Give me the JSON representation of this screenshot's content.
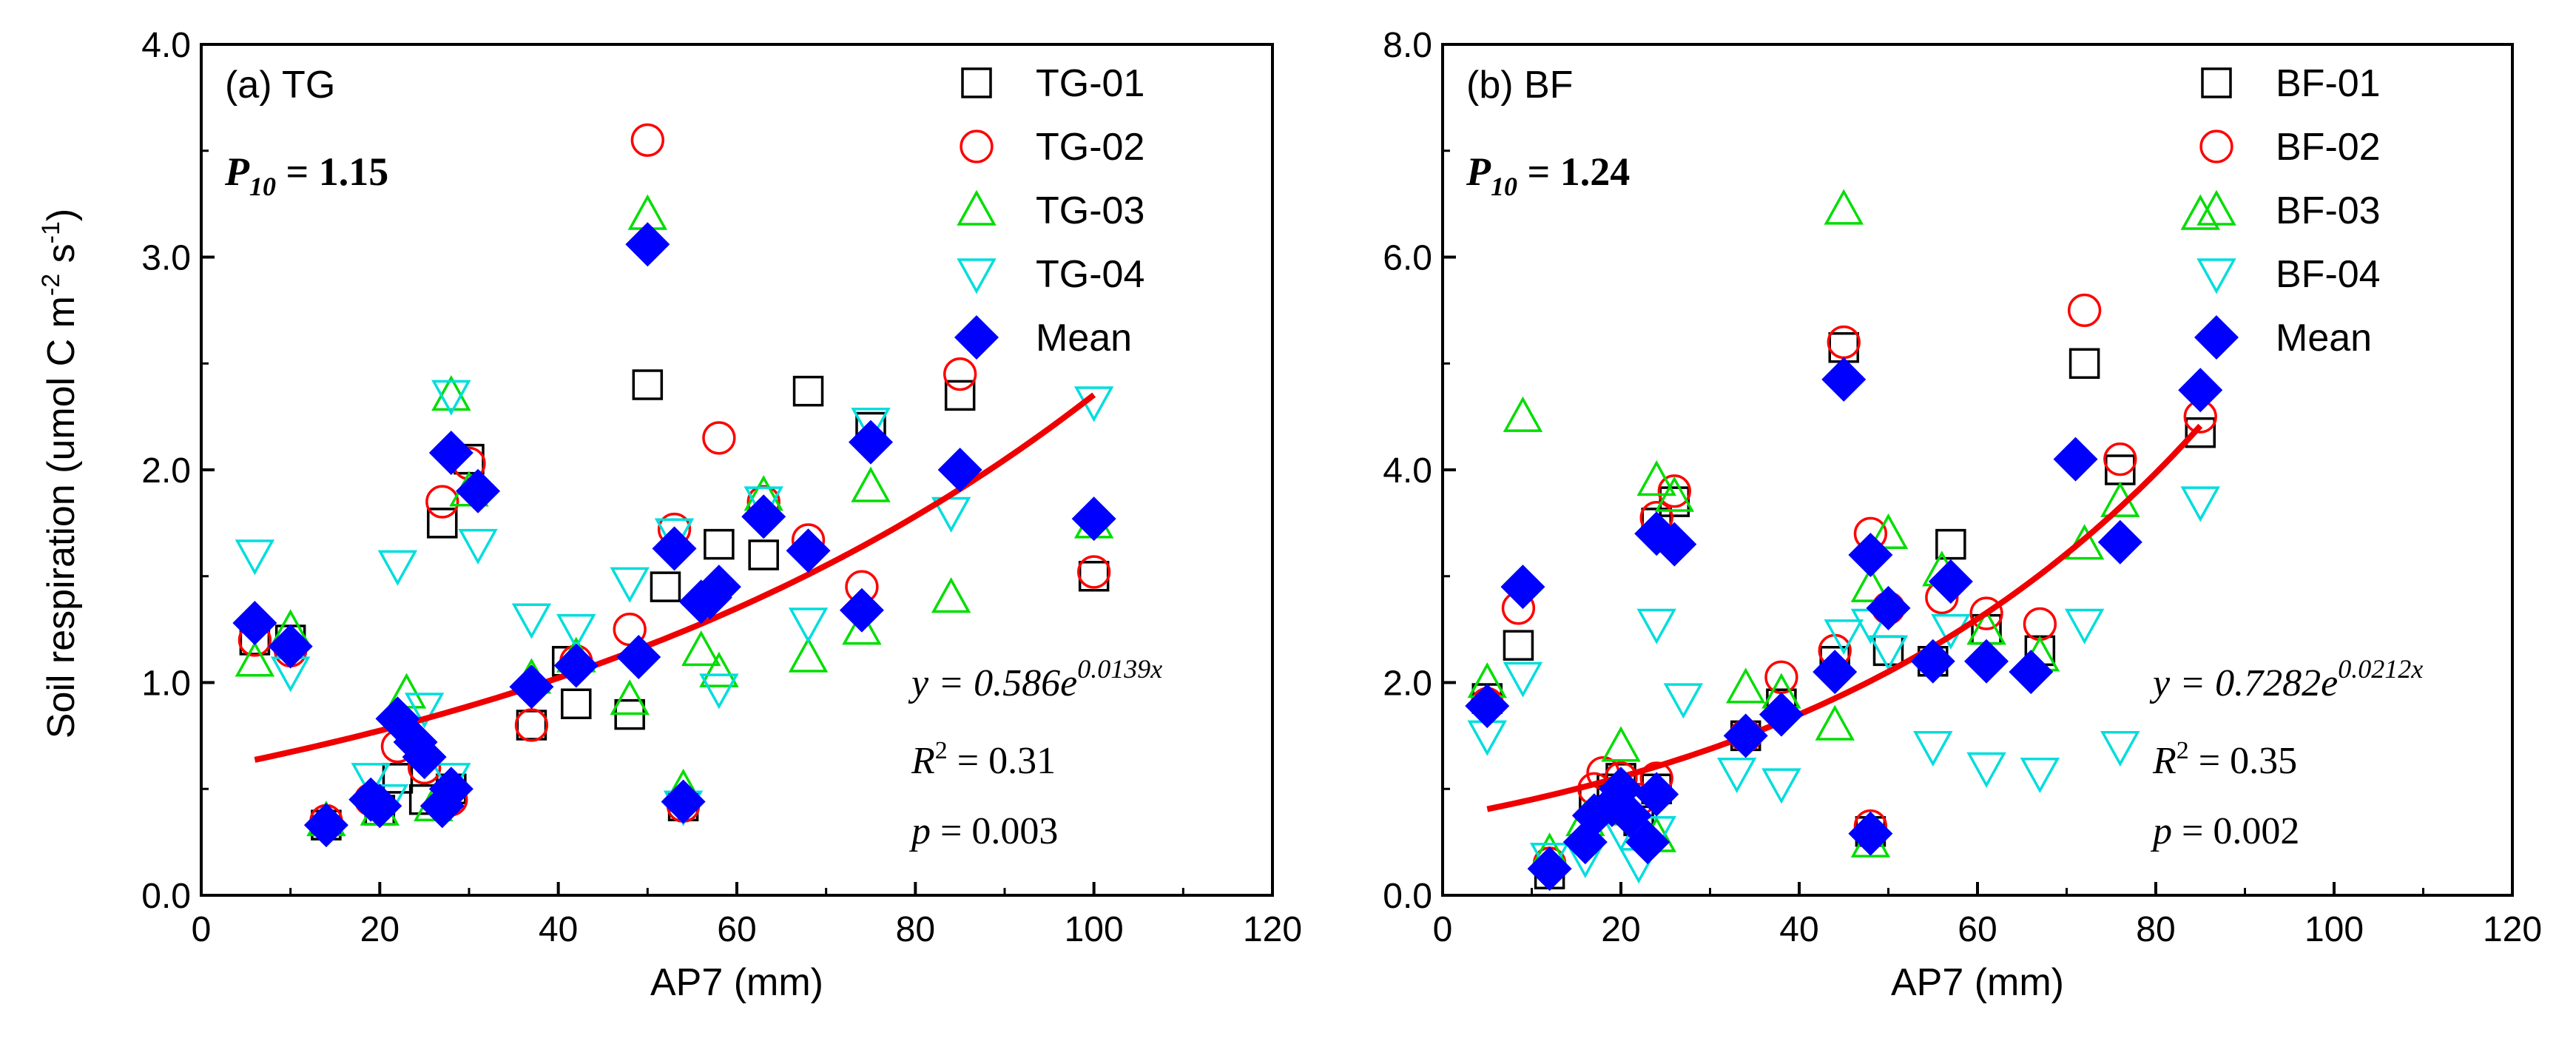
{
  "figure": {
    "y_axis_label": "Soil respiration (umol C m",
    "y_axis_sup1": "-2",
    "y_axis_mid": " s",
    "y_axis_sup2": "-1",
    "y_axis_close": ")"
  },
  "chart_data": [
    {
      "type": "scatter",
      "panel_label": "(a) TG",
      "p10_label": "P",
      "p10_sub": "10",
      "p10_value": " = 1.15",
      "xlabel": "AP7 (mm)",
      "xlim": [
        0,
        120
      ],
      "ylim": [
        0,
        4
      ],
      "x_ticks": [
        "0",
        "20",
        "40",
        "60",
        "80",
        "100",
        "120"
      ],
      "y_ticks": [
        "0.0",
        "1.0",
        "2.0",
        "3.0",
        "4.0"
      ],
      "legend": [
        "TG-01",
        "TG-02",
        "TG-03",
        "TG-04",
        "Mean"
      ],
      "fit": {
        "a": 0.586,
        "b": 0.0139,
        "x_range": [
          6,
          100
        ]
      },
      "eq_lhs": "y = 0.586e",
      "eq_exp": "0.0139x",
      "r2_label": "R",
      "r2_sup": "2",
      "r2_value": " = 0.31",
      "p_label": "p",
      "p_value": " = 0.003",
      "series": [
        {
          "name": "TG-01",
          "marker": "square",
          "color": "#000000",
          "points": [
            [
              6,
              1.2
            ],
            [
              10,
              1.2
            ],
            [
              14,
              0.33
            ],
            [
              20,
              0.4
            ],
            [
              22,
              0.55
            ],
            [
              25,
              0.45
            ],
            [
              27,
              1.75
            ],
            [
              28,
              0.5
            ],
            [
              30,
              2.05
            ],
            [
              37,
              0.8
            ],
            [
              41,
              1.1
            ],
            [
              42,
              0.9
            ],
            [
              48,
              0.85
            ],
            [
              50,
              2.4
            ],
            [
              52,
              1.45
            ],
            [
              54,
              0.42
            ],
            [
              58,
              1.65
            ],
            [
              63,
              1.6
            ],
            [
              68,
              2.37
            ],
            [
              75,
              2.2
            ],
            [
              85,
              2.35
            ],
            [
              100,
              1.5
            ]
          ]
        },
        {
          "name": "TG-02",
          "marker": "circle",
          "color": "#ff0000",
          "points": [
            [
              6,
              1.2
            ],
            [
              10,
              1.15
            ],
            [
              14,
              0.35
            ],
            [
              19,
              0.45
            ],
            [
              22,
              0.7
            ],
            [
              25,
              0.6
            ],
            [
              27,
              1.85
            ],
            [
              28,
              0.45
            ],
            [
              30,
              2.03
            ],
            [
              37,
              0.8
            ],
            [
              42,
              1.1
            ],
            [
              48,
              1.25
            ],
            [
              50,
              3.55
            ],
            [
              53,
              1.72
            ],
            [
              54,
              0.42
            ],
            [
              58,
              2.15
            ],
            [
              63,
              1.85
            ],
            [
              68,
              1.67
            ],
            [
              74,
              1.45
            ],
            [
              85,
              2.45
            ],
            [
              100,
              1.52
            ]
          ]
        },
        {
          "name": "TG-03",
          "marker": "triangle-up",
          "color": "#00dd00",
          "points": [
            [
              6,
              1.1
            ],
            [
              10,
              1.25
            ],
            [
              14,
              0.35
            ],
            [
              20,
              0.4
            ],
            [
              23,
              0.95
            ],
            [
              26,
              0.42
            ],
            [
              28,
              2.35
            ],
            [
              30,
              1.9
            ],
            [
              37,
              1.02
            ],
            [
              42,
              1.12
            ],
            [
              48,
              0.92
            ],
            [
              50,
              3.2
            ],
            [
              54,
              0.5
            ],
            [
              56,
              1.15
            ],
            [
              58,
              1.05
            ],
            [
              63,
              1.88
            ],
            [
              68,
              1.12
            ],
            [
              74,
              1.25
            ],
            [
              75,
              1.92
            ],
            [
              84,
              1.4
            ],
            [
              100,
              1.75
            ]
          ]
        },
        {
          "name": "TG-04",
          "marker": "triangle-down",
          "color": "#00dddd",
          "points": [
            [
              6,
              1.6
            ],
            [
              10,
              1.05
            ],
            [
              19,
              0.55
            ],
            [
              21,
              0.45
            ],
            [
              22,
              1.55
            ],
            [
              25,
              0.88
            ],
            [
              28,
              0.55
            ],
            [
              28,
              2.35
            ],
            [
              31,
              1.65
            ],
            [
              37,
              1.3
            ],
            [
              42,
              1.25
            ],
            [
              48,
              1.47
            ],
            [
              53,
              1.7
            ],
            [
              54,
              0.42
            ],
            [
              58,
              0.97
            ],
            [
              63,
              1.85
            ],
            [
              68,
              1.28
            ],
            [
              75,
              2.22
            ],
            [
              84,
              1.8
            ],
            [
              100,
              2.32
            ]
          ]
        },
        {
          "name": "Mean",
          "marker": "diamond",
          "color": "#0000ff",
          "points": [
            [
              6,
              1.28
            ],
            [
              10,
              1.17
            ],
            [
              14,
              0.33
            ],
            [
              19,
              0.45
            ],
            [
              20,
              0.42
            ],
            [
              22,
              0.83
            ],
            [
              24,
              0.72
            ],
            [
              25,
              0.65
            ],
            [
              27,
              0.42
            ],
            [
              28,
              0.5
            ],
            [
              28,
              2.08
            ],
            [
              31,
              1.9
            ],
            [
              37,
              0.98
            ],
            [
              42,
              1.08
            ],
            [
              49,
              1.12
            ],
            [
              50,
              3.06
            ],
            [
              53,
              1.63
            ],
            [
              54,
              0.44
            ],
            [
              56,
              1.38
            ],
            [
              57,
              1.4
            ],
            [
              58,
              1.45
            ],
            [
              63,
              1.78
            ],
            [
              68,
              1.62
            ],
            [
              74,
              1.34
            ],
            [
              75,
              2.13
            ],
            [
              85,
              2.0
            ],
            [
              100,
              1.77
            ]
          ]
        }
      ]
    },
    {
      "type": "scatter",
      "panel_label": "(b) BF",
      "p10_label": "P",
      "p10_sub": "10",
      "p10_value": " = 1.24",
      "xlabel": "AP7 (mm)",
      "xlim": [
        0,
        120
      ],
      "ylim": [
        0,
        8
      ],
      "x_ticks": [
        "0",
        "20",
        "40",
        "60",
        "80",
        "100",
        "120"
      ],
      "y_ticks": [
        "0.0",
        "2.0",
        "4.0",
        "6.0",
        "8.0"
      ],
      "legend": [
        "BF-01",
        "BF-02",
        "BF-03",
        "BF-04",
        "Mean"
      ],
      "fit": {
        "a": 0.7282,
        "b": 0.0212,
        "x_range": [
          5,
          85
        ]
      },
      "eq_lhs": "y = 0.7282e",
      "eq_exp": "0.0212x",
      "r2_label": "R",
      "r2_sup": "2",
      "r2_value": " = 0.35",
      "p_label": "p",
      "p_value": " = 0.002",
      "series": [
        {
          "name": "BF-01",
          "marker": "square",
          "color": "#000000",
          "points": [
            [
              5,
              1.85
            ],
            [
              8.5,
              2.35
            ],
            [
              12,
              0.2
            ],
            [
              17,
              0.9
            ],
            [
              19,
              1.0
            ],
            [
              20,
              1.1
            ],
            [
              22,
              0.7
            ],
            [
              24,
              1.0
            ],
            [
              24,
              3.5
            ],
            [
              26,
              3.7
            ],
            [
              34,
              1.5
            ],
            [
              38,
              1.8
            ],
            [
              44,
              2.2
            ],
            [
              45,
              5.15
            ],
            [
              48,
              0.6
            ],
            [
              50,
              2.3
            ],
            [
              55,
              2.2
            ],
            [
              57,
              3.3
            ],
            [
              61,
              2.5
            ],
            [
              67,
              2.3
            ],
            [
              72,
              5.0
            ],
            [
              76,
              4.0
            ],
            [
              85,
              4.35
            ]
          ]
        },
        {
          "name": "BF-02",
          "marker": "circle",
          "color": "#ff0000",
          "points": [
            [
              5,
              1.8
            ],
            [
              8.5,
              2.7
            ],
            [
              12,
              0.3
            ],
            [
              17,
              1.0
            ],
            [
              18,
              1.15
            ],
            [
              20,
              1.1
            ],
            [
              22,
              0.9
            ],
            [
              24,
              1.1
            ],
            [
              24,
              3.55
            ],
            [
              26,
              3.8
            ],
            [
              34,
              1.5
            ],
            [
              38,
              2.05
            ],
            [
              44,
              2.3
            ],
            [
              45,
              5.2
            ],
            [
              48,
              3.4
            ],
            [
              48,
              0.65
            ],
            [
              50,
              2.7
            ],
            [
              56,
              2.8
            ],
            [
              61,
              2.65
            ],
            [
              67,
              2.55
            ],
            [
              72,
              5.5
            ],
            [
              76,
              4.1
            ],
            [
              85,
              4.5
            ]
          ]
        },
        {
          "name": "BF-03",
          "marker": "triangle-up",
          "color": "#00dd00",
          "points": [
            [
              5,
              2.0
            ],
            [
              9,
              4.5
            ],
            [
              12,
              0.4
            ],
            [
              16,
              0.7
            ],
            [
              20,
              1.4
            ],
            [
              21,
              0.8
            ],
            [
              24,
              0.55
            ],
            [
              24,
              3.9
            ],
            [
              26,
              3.75
            ],
            [
              34,
              1.95
            ],
            [
              38,
              1.9
            ],
            [
              44,
              1.6
            ],
            [
              45,
              6.45
            ],
            [
              48,
              2.9
            ],
            [
              48,
              0.5
            ],
            [
              50,
              3.4
            ],
            [
              56,
              3.05
            ],
            [
              61,
              2.5
            ],
            [
              67,
              2.25
            ],
            [
              72,
              3.3
            ],
            [
              76,
              3.7
            ],
            [
              85,
              6.4
            ]
          ]
        },
        {
          "name": "BF-04",
          "marker": "triangle-down",
          "color": "#00dddd",
          "points": [
            [
              5,
              1.5
            ],
            [
              9,
              2.05
            ],
            [
              12,
              0.35
            ],
            [
              16,
              0.35
            ],
            [
              20,
              0.6
            ],
            [
              22,
              0.3
            ],
            [
              24,
              0.6
            ],
            [
              24,
              2.55
            ],
            [
              27,
              1.85
            ],
            [
              33,
              1.15
            ],
            [
              38,
              1.05
            ],
            [
              45,
              2.45
            ],
            [
              48,
              2.55
            ],
            [
              50,
              2.3
            ],
            [
              55,
              1.4
            ],
            [
              57,
              2.5
            ],
            [
              61,
              1.2
            ],
            [
              67,
              1.15
            ],
            [
              72,
              2.55
            ],
            [
              76,
              1.4
            ],
            [
              85,
              3.7
            ]
          ]
        },
        {
          "name": "Mean",
          "marker": "diamond",
          "color": "#0000ff",
          "points": [
            [
              5,
              1.78
            ],
            [
              9,
              2.9
            ],
            [
              12,
              0.25
            ],
            [
              16,
              0.5
            ],
            [
              17,
              0.75
            ],
            [
              19,
              0.85
            ],
            [
              20,
              1.0
            ],
            [
              21,
              0.75
            ],
            [
              23,
              0.5
            ],
            [
              24,
              0.95
            ],
            [
              24,
              3.4
            ],
            [
              26,
              3.3
            ],
            [
              34,
              1.5
            ],
            [
              38,
              1.7
            ],
            [
              44,
              2.1
            ],
            [
              45,
              4.85
            ],
            [
              48,
              3.2
            ],
            [
              48,
              0.58
            ],
            [
              50,
              2.7
            ],
            [
              55,
              2.2
            ],
            [
              57,
              2.95
            ],
            [
              61,
              2.2
            ],
            [
              66,
              2.1
            ],
            [
              71,
              4.1
            ],
            [
              76,
              3.32
            ],
            [
              85,
              4.75
            ]
          ]
        }
      ]
    }
  ]
}
